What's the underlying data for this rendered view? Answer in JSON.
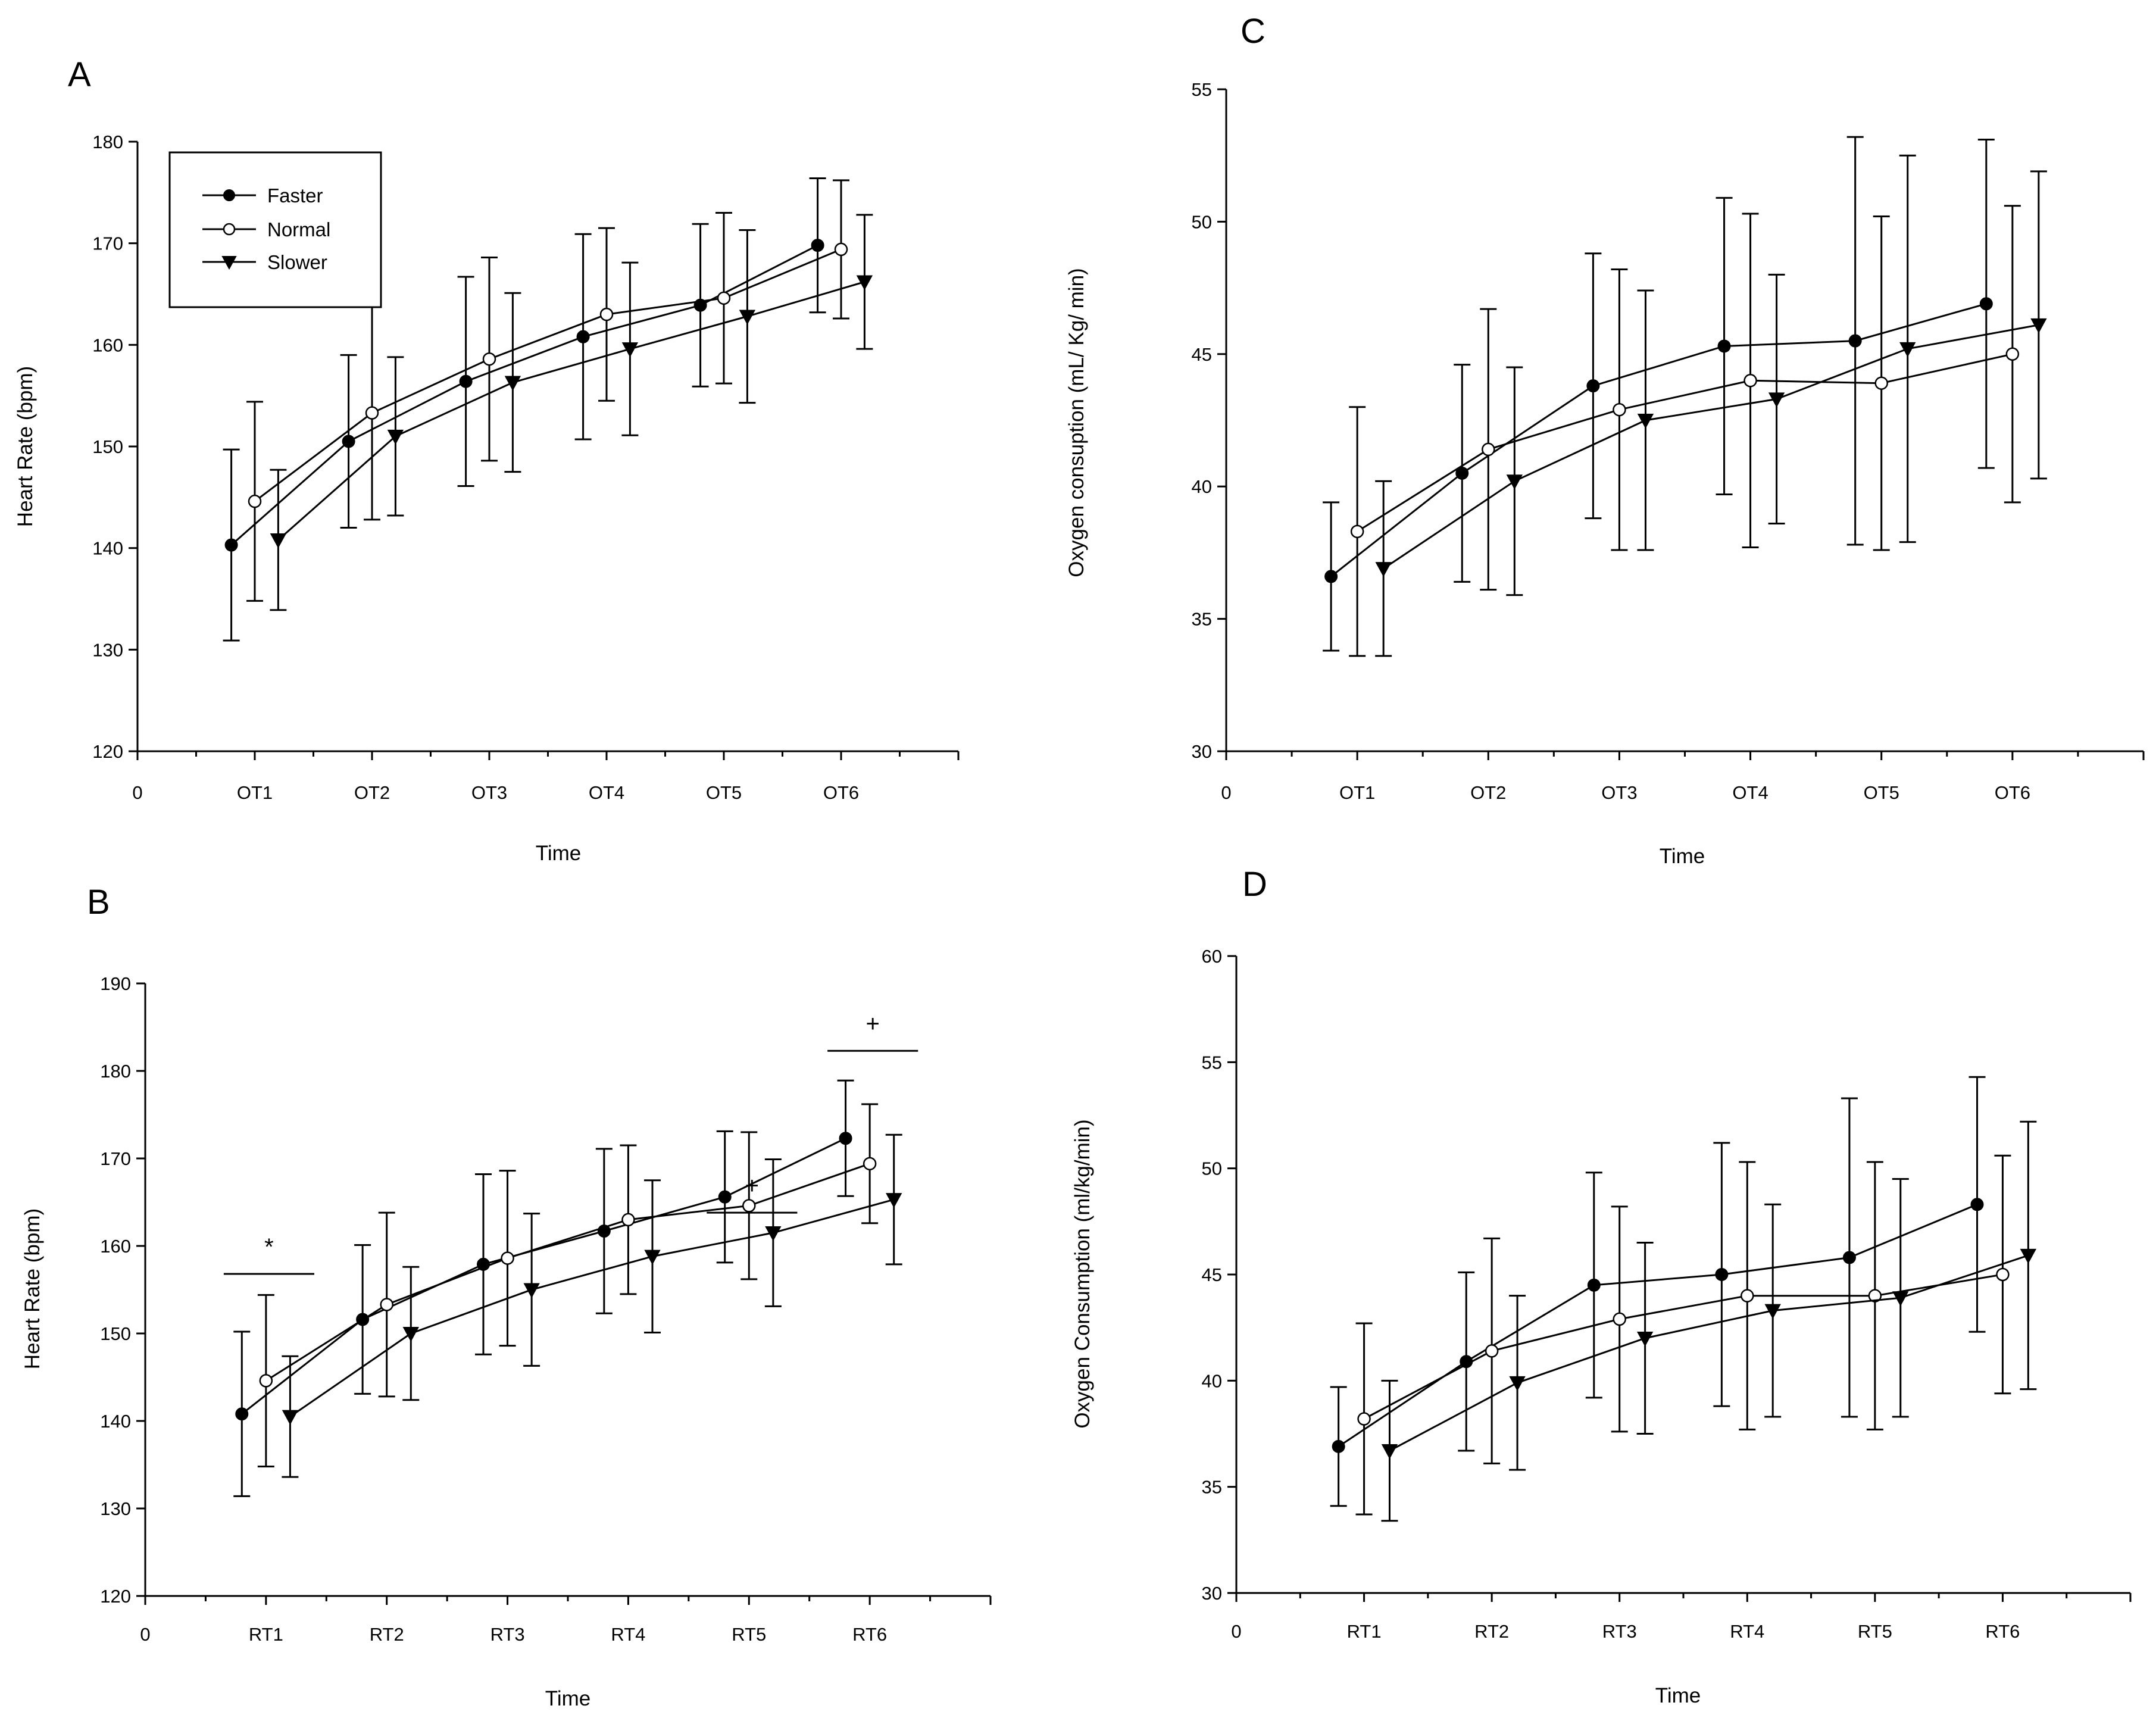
{
  "legend": {
    "entries": [
      {
        "label": "Faster",
        "marker": "filled-circle"
      },
      {
        "label": "Normal",
        "marker": "open-circle"
      },
      {
        "label": "Slower",
        "marker": "filled-triangle-down"
      }
    ]
  },
  "colors": {
    "ink": "#000000",
    "background": "#ffffff",
    "open_marker_fill": "#ffffff"
  },
  "chart_data": [
    {
      "panel": "A",
      "type": "line",
      "title": "",
      "xlabel": "Time",
      "ylabel": "Heart Rate (bpm)",
      "ylim": [
        120,
        180
      ],
      "yticks": [
        120,
        130,
        140,
        150,
        160,
        170,
        180
      ],
      "xlim": [
        0,
        7
      ],
      "x_origin_label": "0",
      "categories": [
        "OT1",
        "OT2",
        "OT3",
        "OT4",
        "OT5",
        "OT6"
      ],
      "legend_shown": true,
      "legend_position": "top-left",
      "series": [
        {
          "name": "Faster",
          "marker": "filled-circle",
          "x": [
            0.8,
            1.8,
            2.8,
            3.8,
            4.8,
            5.8
          ],
          "values": [
            140.3,
            150.5,
            156.4,
            160.8,
            163.9,
            169.8
          ],
          "err": [
            9.4,
            8.5,
            10.3,
            10.1,
            8.0,
            6.6
          ]
        },
        {
          "name": "Normal",
          "marker": "open-circle",
          "x": [
            1.0,
            2.0,
            3.0,
            4.0,
            5.0,
            6.0
          ],
          "values": [
            144.6,
            153.3,
            158.6,
            163.0,
            164.6,
            169.4
          ],
          "err": [
            9.8,
            10.5,
            10.0,
            8.5,
            8.4,
            6.8
          ]
        },
        {
          "name": "Slower",
          "marker": "filled-triangle-down",
          "x": [
            1.2,
            2.2,
            3.2,
            4.2,
            5.2,
            6.2
          ],
          "values": [
            140.8,
            151.0,
            156.3,
            159.6,
            162.8,
            166.2
          ],
          "err": [
            6.9,
            7.8,
            8.8,
            8.5,
            8.5,
            6.6
          ]
        }
      ],
      "annotations": []
    },
    {
      "panel": "B",
      "type": "line",
      "title": "",
      "xlabel": "Time",
      "ylabel": "Heart Rate (bpm)",
      "ylim": [
        120,
        190
      ],
      "yticks": [
        120,
        130,
        140,
        150,
        160,
        170,
        180,
        190
      ],
      "xlim": [
        0,
        7
      ],
      "x_origin_label": "0",
      "categories": [
        "RT1",
        "RT2",
        "RT3",
        "RT4",
        "RT5",
        "RT6"
      ],
      "legend_shown": false,
      "series": [
        {
          "name": "Faster",
          "marker": "filled-circle",
          "x": [
            0.8,
            1.8,
            2.8,
            3.8,
            4.8,
            5.8
          ],
          "values": [
            140.8,
            151.6,
            157.9,
            161.7,
            165.6,
            172.3
          ],
          "err": [
            9.4,
            8.5,
            10.3,
            9.4,
            7.5,
            6.6
          ]
        },
        {
          "name": "Normal",
          "marker": "open-circle",
          "x": [
            1.0,
            2.0,
            3.0,
            4.0,
            5.0,
            6.0
          ],
          "values": [
            144.6,
            153.3,
            158.6,
            163.0,
            164.6,
            169.4
          ],
          "err": [
            9.8,
            10.5,
            10.0,
            8.5,
            8.4,
            6.8
          ]
        },
        {
          "name": "Slower",
          "marker": "filled-triangle-down",
          "x": [
            1.2,
            2.2,
            3.2,
            4.2,
            5.2,
            6.2
          ],
          "values": [
            140.5,
            150.0,
            155.0,
            158.8,
            161.5,
            165.3
          ],
          "err": [
            6.9,
            7.6,
            8.7,
            8.7,
            8.4,
            7.4
          ]
        }
      ],
      "annotations": [
        {
          "text": "*",
          "x_range": [
            0.65,
            1.4
          ],
          "y": 156.8
        },
        {
          "text": "+",
          "x_range": [
            4.65,
            5.4
          ],
          "y": 163.8
        },
        {
          "text": "+",
          "x_range": [
            5.65,
            6.4
          ],
          "y": 182.3
        }
      ]
    },
    {
      "panel": "C",
      "type": "line",
      "title": "",
      "xlabel": "Time",
      "ylabel": "Oxygen consuption (mL/ Kg/ min)",
      "ylim": [
        30,
        55
      ],
      "yticks": [
        30,
        35,
        40,
        45,
        50,
        55
      ],
      "xlim": [
        0,
        7
      ],
      "x_origin_label": "0",
      "categories": [
        "OT1",
        "OT2",
        "OT3",
        "OT4",
        "OT5",
        "OT6"
      ],
      "legend_shown": false,
      "series": [
        {
          "name": "Faster",
          "marker": "filled-circle",
          "x": [
            0.8,
            1.8,
            2.8,
            3.8,
            4.8,
            5.8
          ],
          "values": [
            36.6,
            40.5,
            43.8,
            45.3,
            45.5,
            46.9
          ],
          "err": [
            2.8,
            4.1,
            5.0,
            5.6,
            7.7,
            6.2
          ]
        },
        {
          "name": "Normal",
          "marker": "open-circle",
          "x": [
            1.0,
            2.0,
            3.0,
            4.0,
            5.0,
            6.0
          ],
          "values": [
            38.3,
            41.4,
            42.9,
            44.0,
            43.9,
            45.0
          ],
          "err": [
            4.7,
            5.3,
            5.3,
            6.3,
            6.3,
            5.6
          ]
        },
        {
          "name": "Slower",
          "marker": "filled-triangle-down",
          "x": [
            1.2,
            2.2,
            3.2,
            4.2,
            5.2,
            6.2
          ],
          "values": [
            36.9,
            40.2,
            42.5,
            43.3,
            45.2,
            46.1
          ],
          "err": [
            3.3,
            4.3,
            4.9,
            4.7,
            7.3,
            5.8
          ]
        }
      ],
      "annotations": []
    },
    {
      "panel": "D",
      "type": "line",
      "title": "",
      "xlabel": "Time",
      "ylabel": "Oxygen Consumption (ml/kg/min)",
      "ylim": [
        30,
        60
      ],
      "yticks": [
        30,
        35,
        40,
        45,
        50,
        55,
        60
      ],
      "xlim": [
        0,
        7
      ],
      "x_origin_label": "0",
      "categories": [
        "RT1",
        "RT2",
        "RT3",
        "RT4",
        "RT5",
        "RT6"
      ],
      "legend_shown": false,
      "series": [
        {
          "name": "Faster",
          "marker": "filled-circle",
          "x": [
            0.8,
            1.8,
            2.8,
            3.8,
            4.8,
            5.8
          ],
          "values": [
            36.9,
            40.9,
            44.5,
            45.0,
            45.8,
            48.3
          ],
          "err": [
            2.8,
            4.2,
            5.3,
            6.2,
            7.5,
            6.0
          ]
        },
        {
          "name": "Normal",
          "marker": "open-circle",
          "x": [
            1.0,
            2.0,
            3.0,
            4.0,
            5.0,
            6.0
          ],
          "values": [
            38.2,
            41.4,
            42.9,
            44.0,
            44.0,
            45.0
          ],
          "err": [
            4.5,
            5.3,
            5.3,
            6.3,
            6.3,
            5.6
          ]
        },
        {
          "name": "Slower",
          "marker": "filled-triangle-down",
          "x": [
            1.2,
            2.2,
            3.2,
            4.2,
            5.2,
            6.2
          ],
          "values": [
            36.7,
            39.9,
            42.0,
            43.3,
            43.9,
            45.9
          ],
          "err": [
            3.3,
            4.1,
            4.5,
            5.0,
            5.6,
            6.3
          ]
        }
      ],
      "annotations": []
    }
  ]
}
